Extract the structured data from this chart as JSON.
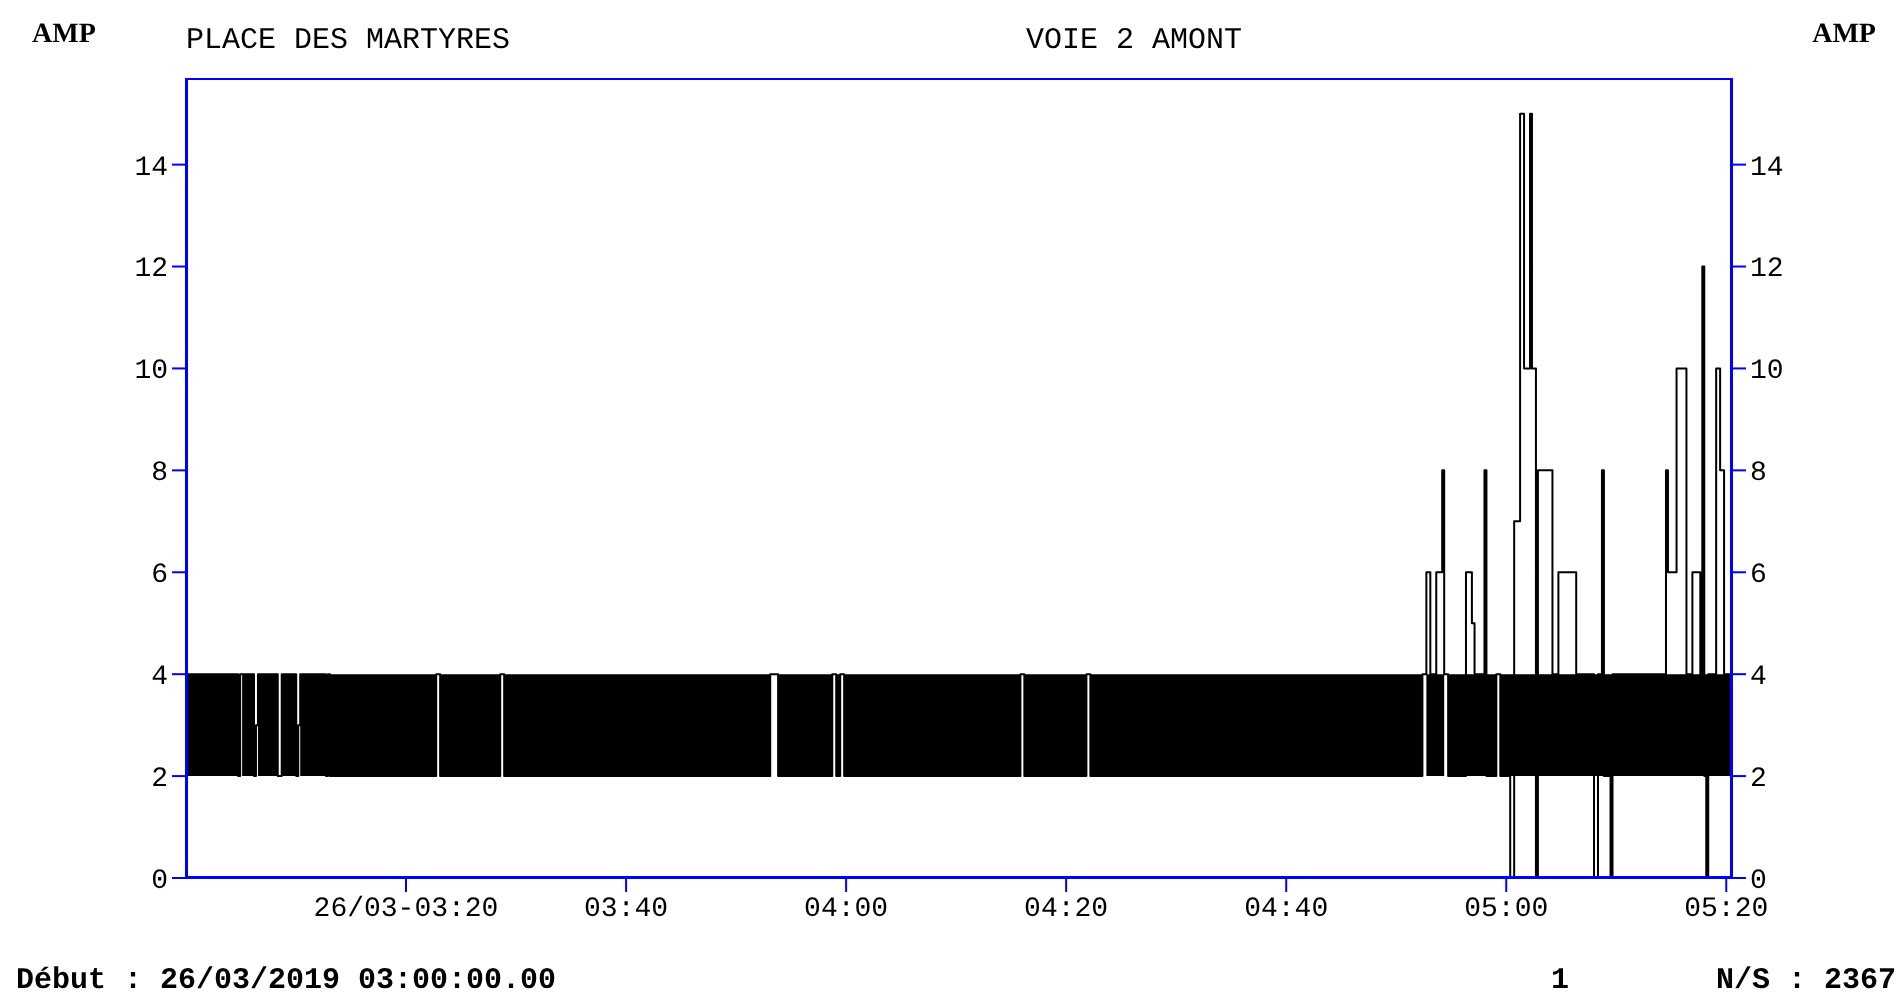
{
  "chart_data": {
    "type": "step",
    "title": "PLACE DES MARTYRES",
    "subtitle": "VOIE 2 AMONT",
    "ylabel": "AMP",
    "y2label": "AMP",
    "annotations": [
      "Début : 26/03/2019 03:00:00.00",
      "1",
      "N/S : 2367"
    ],
    "x": [
      3.0,
      3.079,
      3.082,
      3.085,
      3.103,
      3.106,
      3.109,
      3.139,
      3.142,
      3.145,
      3.167,
      3.17,
      3.173,
      3.212,
      3.215,
      3.218,
      3.379,
      3.382,
      3.385,
      3.476,
      3.479,
      3.482,
      3.885,
      3.891,
      3.897,
      3.979,
      3.982,
      3.985,
      3.991,
      3.994,
      3.997,
      4.264,
      4.267,
      4.27,
      4.364,
      4.367,
      4.37,
      4.873,
      4.876,
      4.879,
      4.885,
      4.894,
      4.903,
      4.906,
      4.909,
      4.912,
      4.939,
      4.948,
      4.952,
      4.967,
      4.97,
      4.985,
      4.988,
      4.991,
      5.006,
      5.012,
      5.015,
      5.021,
      5.024,
      5.027,
      5.03,
      5.036,
      5.039,
      5.045,
      5.048,
      5.058,
      5.07,
      5.079,
      5.106,
      5.133,
      5.139,
      5.145,
      5.148,
      5.158,
      5.161,
      5.242,
      5.245,
      5.258,
      5.273,
      5.282,
      5.294,
      5.297,
      5.3,
      5.303,
      5.306,
      5.318,
      5.324,
      5.33,
      5.342
    ],
    "series": [
      {
        "color": "#000000",
        "values": [
          4,
          2,
          4,
          4,
          2,
          3,
          4,
          2,
          2,
          4,
          2,
          3,
          4,
          2,
          4,
          2,
          4,
          4,
          2,
          4,
          4,
          2,
          4,
          4,
          2,
          4,
          4,
          2,
          4,
          4,
          2,
          4,
          4,
          2,
          4,
          4,
          2,
          4,
          4,
          6,
          4,
          6,
          8,
          4,
          4,
          2,
          6,
          5,
          4,
          8,
          2,
          4,
          4,
          2,
          0,
          7,
          null,
          15,
          null,
          10,
          null,
          15,
          10,
          0,
          8,
          8,
          4,
          6,
          4,
          0,
          4,
          8,
          2,
          0,
          4,
          8,
          6,
          10,
          4,
          6,
          4,
          12,
          2,
          0,
          4,
          10,
          8,
          4,
          8
        ],
        "lower": [
          2,
          2,
          null,
          2,
          2,
          null,
          2,
          2,
          null,
          2,
          2,
          null,
          2,
          2,
          null,
          2,
          2,
          null,
          2,
          2,
          null,
          2,
          2,
          null,
          2,
          2,
          null,
          2,
          2,
          null,
          2,
          2,
          null,
          2,
          2,
          null,
          2,
          2,
          null,
          2,
          2,
          2,
          2,
          2,
          null,
          2,
          2,
          2,
          2,
          2,
          2,
          2,
          null,
          2,
          2,
          2,
          2,
          2,
          2,
          2,
          2,
          2,
          2,
          2,
          2,
          2,
          2,
          2,
          2,
          2,
          2,
          2,
          2,
          2,
          2,
          2,
          2,
          2,
          2,
          2,
          2,
          2,
          2,
          2,
          2,
          2,
          2,
          2,
          2
        ],
        "upper": [
          4,
          4,
          null,
          4,
          4,
          null,
          4,
          4,
          null,
          4,
          4,
          null,
          4,
          4,
          null,
          4,
          4,
          null,
          4,
          4,
          null,
          4,
          4,
          null,
          4,
          4,
          null,
          4,
          4,
          null,
          4,
          4,
          null,
          4,
          4,
          null,
          4,
          4,
          null,
          4,
          4,
          4,
          4,
          4,
          null,
          4,
          4,
          4,
          4,
          4,
          4,
          4,
          null,
          4,
          4,
          4,
          4,
          4,
          4,
          4,
          4,
          4,
          4,
          4,
          4,
          4,
          4,
          4,
          4,
          4,
          4,
          4,
          4,
          4,
          4,
          4,
          4,
          4,
          4,
          4,
          4,
          4,
          4,
          4,
          4,
          4,
          4,
          4,
          4
        ]
      }
    ],
    "xlim": [
      3.0,
      5.342
    ],
    "xticks": [
      {
        "value": 3.3333,
        "label": "26/03-03:20"
      },
      {
        "value": 3.6667,
        "label": "03:40"
      },
      {
        "value": 4,
        "label": "04:00"
      },
      {
        "value": 4.3333,
        "label": "04:20"
      },
      {
        "value": 4.6667,
        "label": "04:40"
      },
      {
        "value": 5,
        "label": "05:00"
      },
      {
        "value": 5.3333,
        "label": "05:20"
      }
    ],
    "ylim": [
      0,
      15.7
    ],
    "yticks": [
      0,
      2,
      4,
      6,
      8,
      10,
      12,
      14
    ],
    "y2lim": [
      0,
      15.7
    ],
    "y2ticks": [
      0,
      2,
      4,
      6,
      8,
      10,
      12,
      14
    ],
    "grid": false,
    "legend": false,
    "marker": "none",
    "line_style": "solid"
  }
}
